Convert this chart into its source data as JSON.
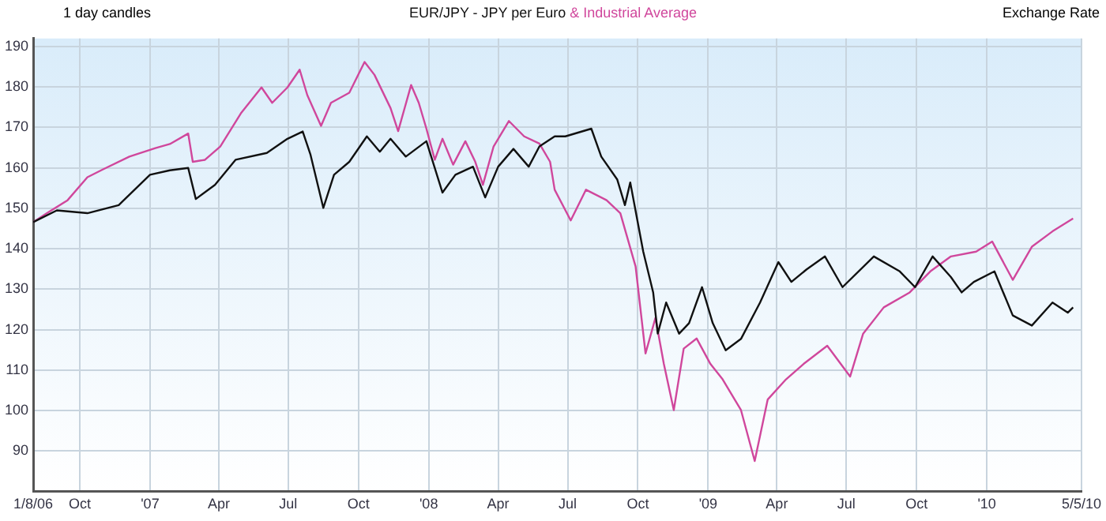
{
  "chart_data": {
    "type": "line",
    "annotations": [
      "1 day candles",
      "Exchange Rate"
    ],
    "xlim": [
      "2006-08-01",
      "2010-05-05"
    ],
    "ylim": [
      80,
      192
    ],
    "xticks": [
      {
        "value": "2006-08-01",
        "label": "1/8/06"
      },
      {
        "value": "2006-10-01",
        "label": "Oct"
      },
      {
        "value": "2007-01-01",
        "label": "'07"
      },
      {
        "value": "2007-04-01",
        "label": "Apr"
      },
      {
        "value": "2007-07-01",
        "label": "Jul"
      },
      {
        "value": "2007-10-01",
        "label": "Oct"
      },
      {
        "value": "2008-01-01",
        "label": "'08"
      },
      {
        "value": "2008-04-01",
        "label": "Apr"
      },
      {
        "value": "2008-07-01",
        "label": "Jul"
      },
      {
        "value": "2008-10-01",
        "label": "Oct"
      },
      {
        "value": "2009-01-01",
        "label": "'09"
      },
      {
        "value": "2009-04-01",
        "label": "Apr"
      },
      {
        "value": "2009-07-01",
        "label": "Jul"
      },
      {
        "value": "2009-10-01",
        "label": "Oct"
      },
      {
        "value": "2010-01-01",
        "label": "'10"
      },
      {
        "value": "2010-05-05",
        "label": "5/5/10"
      }
    ],
    "yticks": [
      90,
      100,
      110,
      120,
      130,
      140,
      150,
      160,
      170,
      180,
      190
    ],
    "grid": true,
    "marker": "none",
    "line_style": "solid",
    "legend": "top",
    "series": [
      {
        "name": "EUR/JPY - JPY per Euro",
        "color": "#111111",
        "x": [
          "2006-08-01",
          "2006-09-01",
          "2006-10-11",
          "2006-11-21",
          "2007-01-01",
          "2007-01-27",
          "2007-02-20",
          "2007-03-02",
          "2007-03-27",
          "2007-04-23",
          "2007-06-03",
          "2007-06-30",
          "2007-07-20",
          "2007-07-30",
          "2007-08-16",
          "2007-08-30",
          "2007-09-19",
          "2007-10-12",
          "2007-10-29",
          "2007-11-12",
          "2007-12-02",
          "2007-12-29",
          "2008-01-19",
          "2008-02-05",
          "2008-02-28",
          "2008-03-15",
          "2008-04-01",
          "2008-04-21",
          "2008-05-11",
          "2008-05-25",
          "2008-06-14",
          "2008-06-28",
          "2008-08-01",
          "2008-08-14",
          "2008-09-04",
          "2008-09-14",
          "2008-09-21",
          "2008-10-08",
          "2008-10-21",
          "2008-10-27",
          "2008-11-07",
          "2008-11-24",
          "2008-12-07",
          "2008-12-24",
          "2009-01-07",
          "2009-01-24",
          "2009-02-13",
          "2009-03-10",
          "2009-04-03",
          "2009-04-20",
          "2009-05-10",
          "2009-06-03",
          "2009-06-26",
          "2009-08-06",
          "2009-09-09",
          "2009-09-29",
          "2009-10-22",
          "2009-11-15",
          "2009-11-29",
          "2009-12-15",
          "2010-01-11",
          "2010-02-04",
          "2010-03-01",
          "2010-03-28",
          "2010-04-17",
          "2010-04-24"
        ],
        "values": [
          146.6,
          149.5,
          148.8,
          150.8,
          158.3,
          159.4,
          160,
          152.3,
          155.8,
          162,
          163.7,
          167.2,
          169,
          163.4,
          150.1,
          158.3,
          161.5,
          167.8,
          164,
          167.2,
          162.8,
          166.6,
          153.9,
          158.3,
          160.3,
          152.7,
          160.3,
          164.7,
          160.3,
          165.3,
          167.8,
          167.8,
          169.7,
          162.8,
          157.1,
          150.8,
          156.4,
          139.3,
          129.2,
          119,
          126.7,
          119,
          121.6,
          130.5,
          121.6,
          114.9,
          117.7,
          126.7,
          136.7,
          131.8,
          134.9,
          138.1,
          130.5,
          138.1,
          134.4,
          130.5,
          138.1,
          133,
          129.2,
          131.8,
          134.4,
          123.5,
          121,
          126.7,
          124.2,
          125.5
        ]
      },
      {
        "name": "& Industrial Average",
        "color": "#d0479c",
        "x": [
          "2006-08-01",
          "2006-08-19",
          "2006-09-15",
          "2006-10-11",
          "2006-10-31",
          "2006-12-05",
          "2007-01-08",
          "2007-01-27",
          "2007-02-20",
          "2007-02-26",
          "2007-03-14",
          "2007-04-03",
          "2007-04-30",
          "2007-05-27",
          "2007-06-10",
          "2007-06-30",
          "2007-07-16",
          "2007-07-26",
          "2007-08-13",
          "2007-08-26",
          "2007-09-19",
          "2007-10-09",
          "2007-10-22",
          "2007-11-12",
          "2007-11-22",
          "2007-12-09",
          "2007-12-19",
          "2007-12-29",
          "2008-01-09",
          "2008-01-19",
          "2008-02-02",
          "2008-02-18",
          "2008-03-02",
          "2008-03-12",
          "2008-03-26",
          "2008-04-15",
          "2008-05-05",
          "2008-05-25",
          "2008-06-08",
          "2008-06-14",
          "2008-07-05",
          "2008-07-25",
          "2008-08-21",
          "2008-09-08",
          "2008-09-28",
          "2008-10-11",
          "2008-10-24",
          "2008-11-04",
          "2008-11-17",
          "2008-11-30",
          "2008-12-17",
          "2009-01-04",
          "2009-01-20",
          "2009-02-13",
          "2009-03-03",
          "2009-03-20",
          "2009-04-13",
          "2009-05-06",
          "2009-06-06",
          "2009-07-06",
          "2009-07-23",
          "2009-08-19",
          "2009-09-22",
          "2009-10-19",
          "2009-11-15",
          "2009-12-18",
          "2010-01-08",
          "2010-02-04",
          "2010-03-01",
          "2010-03-28",
          "2010-04-24"
        ],
        "values": [
          146.6,
          148.8,
          152,
          157.7,
          159.6,
          162.8,
          164.9,
          165.9,
          168.5,
          161.5,
          162,
          165.3,
          173.5,
          179.9,
          176.1,
          179.9,
          184.3,
          178,
          170.4,
          176.1,
          178.6,
          186.2,
          183,
          174.8,
          169.1,
          180.5,
          176.1,
          169.7,
          162,
          167.2,
          160.8,
          166.6,
          161.5,
          155.8,
          165.3,
          171.6,
          167.8,
          166,
          161.5,
          154.6,
          147,
          154.6,
          152,
          148.8,
          135.6,
          114.1,
          122.9,
          111.5,
          100.1,
          115.3,
          117.8,
          111.5,
          107.7,
          100.1,
          87.5,
          102.7,
          107.7,
          111.5,
          116,
          108.4,
          119,
          125.5,
          129.2,
          134.4,
          138.1,
          139.3,
          141.8,
          132.3,
          140.5,
          144.3,
          147.5
        ]
      }
    ]
  }
}
